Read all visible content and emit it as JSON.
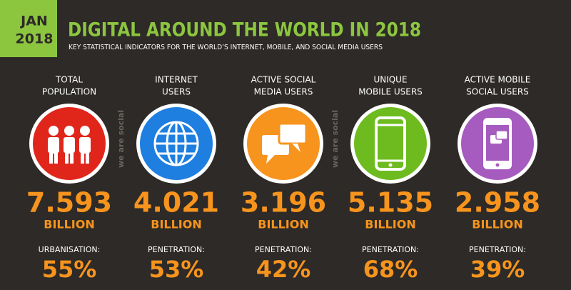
{
  "header": {
    "badge": [
      "JAN",
      "2018"
    ],
    "title": "DIGITAL AROUND THE WORLD IN 2018",
    "subtitle": "KEY STATISTICAL INDICATORS FOR THE WORLD’S INTERNET, MOBILE, AND SOCIAL MEDIA USERS"
  },
  "watermark": "we are social",
  "columns": [
    {
      "label": [
        "TOTAL",
        "POPULATION"
      ],
      "value": "7.593",
      "unit": "BILLION",
      "sub_label": "URBANISATION:",
      "sub_value": "55%",
      "color": "#e0261b",
      "icon": "people"
    },
    {
      "label": [
        "INTERNET",
        "USERS"
      ],
      "value": "4.021",
      "unit": "BILLION",
      "sub_label": "PENETRATION:",
      "sub_value": "53%",
      "color": "#1f7fe0",
      "icon": "globe"
    },
    {
      "label": [
        "ACTIVE SOCIAL",
        "MEDIA USERS"
      ],
      "value": "3.196",
      "unit": "BILLION",
      "sub_label": "PENETRATION:",
      "sub_value": "42%",
      "color": "#f7941d",
      "icon": "chat"
    },
    {
      "label": [
        "UNIQUE",
        "MOBILE USERS"
      ],
      "value": "5.135",
      "unit": "BILLION",
      "sub_label": "PENETRATION:",
      "sub_value": "68%",
      "color": "#6dbb1f",
      "icon": "phone"
    },
    {
      "label": [
        "ACTIVE MOBILE",
        "SOCIAL USERS"
      ],
      "value": "2.958",
      "unit": "BILLION",
      "sub_label": "PENETRATION:",
      "sub_value": "39%",
      "color": "#a65cbf",
      "icon": "mobilechat"
    }
  ]
}
